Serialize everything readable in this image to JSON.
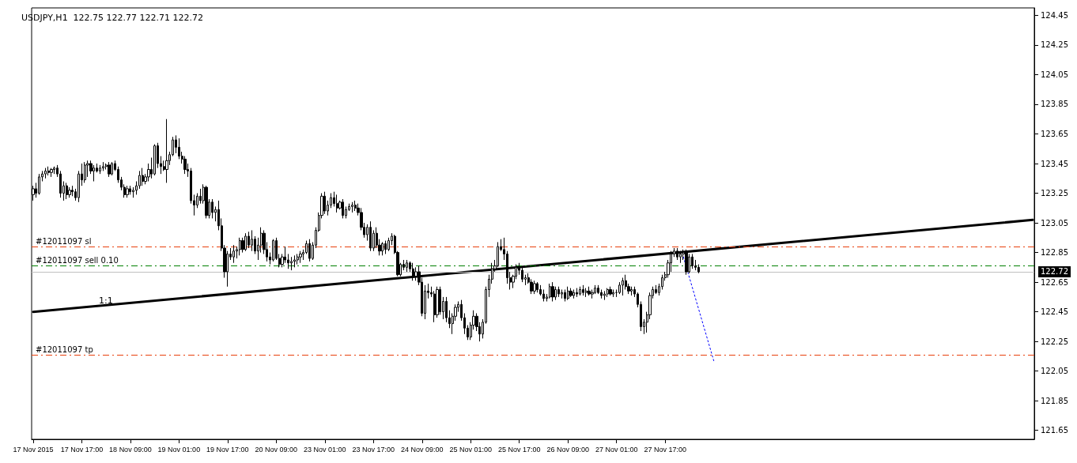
{
  "chart_data": {
    "type": "candlestick",
    "title": "USDJPY,H1  122.75 122.77 122.71 122.72",
    "categories": [
      "17 Nov 2015",
      null,
      null,
      null,
      null,
      null,
      null,
      null,
      null,
      null,
      null,
      null,
      null,
      null,
      null,
      null,
      "17 Nov 17:00",
      null,
      null,
      null,
      null,
      null,
      null,
      null,
      null,
      null,
      null,
      null,
      null,
      null,
      null,
      null,
      "18 Nov 09:00",
      null,
      null,
      null,
      null,
      null,
      null,
      null,
      null,
      null,
      null,
      null,
      null,
      null,
      null,
      null,
      "19 Nov 01:00",
      null,
      null,
      null,
      null,
      null,
      null,
      null,
      null,
      null,
      null,
      null,
      null,
      null,
      null,
      null,
      "19 Nov 17:00",
      null,
      null,
      null,
      null,
      null,
      null,
      null,
      null,
      null,
      null,
      null,
      null,
      null,
      null,
      null,
      "20 Nov 09:00",
      null,
      null,
      null,
      null,
      null,
      null,
      null,
      null,
      null,
      null,
      null,
      null,
      null,
      null,
      null,
      "23 Nov 01:00",
      null,
      null,
      null,
      null,
      null,
      null,
      null,
      null,
      null,
      null,
      null,
      null,
      null,
      null,
      null,
      "23 Nov 17:00",
      null,
      null,
      null,
      null,
      null,
      null,
      null,
      null,
      null,
      null,
      null,
      null,
      null,
      null,
      null,
      "24 Nov 09:00",
      null,
      null,
      null,
      null,
      null,
      null,
      null,
      null,
      null,
      null,
      null,
      null,
      null,
      null,
      null,
      "25 Nov 01:00",
      null,
      null,
      null,
      null,
      null,
      null,
      null,
      null,
      null,
      null,
      null,
      null,
      null,
      null,
      null,
      "25 Nov 17:00",
      null,
      null,
      null,
      null,
      null,
      null,
      null,
      null,
      null,
      null,
      null,
      null,
      null,
      null,
      null,
      "26 Nov 09:00",
      null,
      null,
      null,
      null,
      null,
      null,
      null,
      null,
      null,
      null,
      null,
      null,
      null,
      null,
      null,
      "27 Nov 01:00",
      null,
      null,
      null,
      null,
      null,
      null,
      null,
      null,
      null,
      null,
      null,
      null,
      null,
      null,
      null,
      "27 Nov 17:00",
      null,
      null,
      null,
      null,
      null,
      null,
      null,
      null,
      null,
      null,
      null,
      null,
      null,
      null,
      null,
      null,
      null,
      null,
      null,
      null,
      null,
      null,
      null,
      null,
      null,
      null,
      null,
      null,
      null,
      null,
      null,
      null,
      null,
      null,
      null,
      null,
      null,
      null,
      null,
      null,
      null,
      null,
      null,
      null,
      null,
      null,
      null,
      null,
      null,
      null,
      null,
      null,
      null,
      null,
      null,
      null,
      null,
      null,
      null,
      null,
      null,
      null,
      null,
      null,
      null,
      null,
      null,
      null,
      null,
      null,
      null,
      null,
      null,
      null,
      null,
      null,
      null,
      null,
      null,
      null,
      null,
      null,
      null,
      null,
      null,
      null,
      null,
      null,
      null,
      null,
      null,
      null,
      null,
      null,
      null,
      null,
      null,
      null,
      null,
      null,
      null,
      null,
      null,
      null,
      null,
      null,
      null,
      null,
      null,
      null,
      null,
      null,
      null,
      null,
      null,
      null,
      null,
      null,
      null,
      null,
      null
    ],
    "ohlc": [
      [
        123.24,
        123.3,
        123.2,
        123.28
      ],
      [
        123.28,
        123.32,
        123.22,
        123.25
      ],
      [
        123.25,
        123.38,
        123.24,
        123.36
      ],
      [
        123.36,
        123.4,
        123.33,
        123.38
      ],
      [
        123.38,
        123.42,
        123.35,
        123.4
      ],
      [
        123.4,
        123.43,
        123.37,
        123.39
      ],
      [
        123.39,
        123.42,
        123.36,
        123.41
      ],
      [
        123.41,
        123.43,
        123.38,
        123.42
      ],
      [
        123.42,
        123.44,
        123.36,
        123.38
      ],
      [
        123.38,
        123.4,
        123.22,
        123.25
      ],
      [
        123.25,
        123.33,
        123.2,
        123.3
      ],
      [
        123.3,
        123.32,
        123.21,
        123.24
      ],
      [
        123.24,
        123.29,
        123.22,
        123.27
      ],
      [
        123.27,
        123.3,
        123.23,
        123.26
      ],
      [
        123.26,
        123.28,
        123.2,
        123.22
      ],
      [
        123.22,
        123.4,
        123.19,
        123.38
      ],
      [
        123.38,
        123.45,
        123.3,
        123.34
      ],
      [
        123.34,
        123.46,
        123.32,
        123.44
      ],
      [
        123.44,
        123.47,
        123.36,
        123.45
      ],
      [
        123.45,
        123.47,
        123.38,
        123.4
      ],
      [
        123.4,
        123.44,
        123.33,
        123.42
      ],
      [
        123.42,
        123.45,
        123.39,
        123.4
      ],
      [
        123.4,
        123.44,
        123.38,
        123.42
      ],
      [
        123.42,
        123.46,
        123.4,
        123.43
      ],
      [
        123.43,
        123.45,
        123.41,
        123.44
      ],
      [
        123.44,
        123.46,
        123.36,
        123.38
      ],
      [
        123.38,
        123.46,
        123.37,
        123.45
      ],
      [
        123.45,
        123.47,
        123.4,
        123.41
      ],
      [
        123.41,
        123.43,
        123.32,
        123.34
      ],
      [
        123.34,
        123.36,
        123.27,
        123.29
      ],
      [
        123.29,
        123.31,
        123.22,
        123.24
      ],
      [
        123.24,
        123.3,
        123.22,
        123.28
      ],
      [
        123.28,
        123.3,
        123.24,
        123.26
      ],
      [
        123.26,
        123.29,
        123.22,
        123.27
      ],
      [
        123.27,
        123.33,
        123.24,
        123.3
      ],
      [
        123.3,
        123.4,
        123.28,
        123.37
      ],
      [
        123.37,
        123.42,
        123.3,
        123.33
      ],
      [
        123.33,
        123.38,
        123.31,
        123.36
      ],
      [
        123.36,
        123.45,
        123.33,
        123.41
      ],
      [
        123.41,
        123.49,
        123.35,
        123.38
      ],
      [
        123.38,
        123.58,
        123.37,
        123.57
      ],
      [
        123.57,
        123.59,
        123.42,
        123.45
      ],
      [
        123.45,
        123.5,
        123.38,
        123.43
      ],
      [
        123.43,
        123.47,
        123.4,
        123.41
      ],
      [
        123.41,
        123.75,
        123.32,
        123.47
      ],
      [
        123.47,
        123.53,
        123.44,
        123.51
      ],
      [
        123.51,
        123.63,
        123.5,
        123.61
      ],
      [
        123.61,
        123.64,
        123.52,
        123.56
      ],
      [
        123.56,
        123.62,
        123.48,
        123.5
      ],
      [
        123.5,
        123.53,
        123.45,
        123.48
      ],
      [
        123.48,
        123.5,
        123.38,
        123.41
      ],
      [
        123.41,
        123.45,
        123.36,
        123.4
      ],
      [
        123.4,
        123.42,
        123.18,
        123.2
      ],
      [
        123.2,
        123.24,
        123.1,
        123.17
      ],
      [
        123.17,
        123.25,
        123.15,
        123.23
      ],
      [
        123.23,
        123.28,
        123.18,
        123.2
      ],
      [
        123.2,
        123.31,
        123.18,
        123.29
      ],
      [
        123.29,
        123.3,
        123.08,
        123.1
      ],
      [
        123.1,
        123.21,
        123.08,
        123.19
      ],
      [
        123.19,
        123.21,
        123.08,
        123.12
      ],
      [
        123.12,
        123.16,
        123.06,
        123.14
      ],
      [
        123.14,
        123.2,
        123.0,
        123.03
      ],
      [
        123.03,
        123.08,
        122.86,
        122.88
      ],
      [
        122.88,
        122.9,
        122.68,
        122.72
      ],
      [
        122.72,
        122.86,
        122.62,
        122.84
      ],
      [
        122.84,
        122.88,
        122.8,
        122.82
      ],
      [
        122.82,
        122.9,
        122.78,
        122.86
      ],
      [
        122.86,
        122.89,
        122.81,
        122.87
      ],
      [
        122.87,
        122.95,
        122.83,
        122.93
      ],
      [
        122.93,
        122.95,
        122.85,
        122.87
      ],
      [
        122.87,
        122.98,
        122.86,
        122.96
      ],
      [
        122.96,
        122.99,
        122.88,
        122.9
      ],
      [
        122.9,
        123.0,
        122.86,
        122.94
      ],
      [
        122.94,
        122.96,
        122.84,
        122.86
      ],
      [
        122.86,
        122.95,
        122.8,
        122.9
      ],
      [
        122.9,
        123.02,
        122.85,
        122.98
      ],
      [
        122.98,
        123.0,
        122.84,
        122.87
      ],
      [
        122.87,
        122.92,
        122.79,
        122.82
      ],
      [
        122.82,
        122.85,
        122.77,
        122.8
      ],
      [
        122.8,
        122.94,
        122.79,
        122.93
      ],
      [
        122.93,
        122.95,
        122.8,
        122.81
      ],
      [
        122.81,
        122.84,
        122.75,
        122.77
      ],
      [
        122.77,
        122.84,
        122.75,
        122.82
      ],
      [
        122.82,
        122.89,
        122.78,
        122.8
      ],
      [
        122.8,
        122.84,
        122.74,
        122.78
      ],
      [
        122.78,
        122.82,
        122.73,
        122.79
      ],
      [
        122.79,
        122.83,
        122.75,
        122.8
      ],
      [
        122.8,
        122.84,
        122.77,
        122.82
      ],
      [
        122.82,
        122.86,
        122.78,
        122.84
      ],
      [
        122.84,
        122.87,
        122.8,
        122.85
      ],
      [
        122.85,
        122.93,
        122.84,
        122.91
      ],
      [
        122.91,
        122.94,
        122.79,
        122.81
      ],
      [
        122.81,
        122.92,
        122.8,
        122.9
      ],
      [
        122.9,
        123.02,
        122.88,
        123.0
      ],
      [
        123.0,
        123.12,
        122.99,
        123.1
      ],
      [
        123.1,
        123.25,
        123.08,
        123.23
      ],
      [
        123.23,
        123.26,
        123.11,
        123.13
      ],
      [
        123.13,
        123.2,
        123.1,
        123.17
      ],
      [
        123.17,
        123.25,
        123.15,
        123.22
      ],
      [
        123.22,
        123.26,
        123.16,
        123.18
      ],
      [
        123.18,
        123.24,
        123.12,
        123.15
      ],
      [
        123.15,
        123.2,
        123.14,
        123.19
      ],
      [
        123.19,
        123.21,
        123.08,
        123.1
      ],
      [
        123.1,
        123.16,
        123.08,
        123.14
      ],
      [
        123.14,
        123.18,
        123.13,
        123.16
      ],
      [
        123.16,
        123.19,
        123.12,
        123.17
      ],
      [
        123.17,
        123.2,
        123.13,
        123.15
      ],
      [
        123.15,
        123.18,
        123.1,
        123.12
      ],
      [
        123.12,
        123.15,
        123.0,
        123.02
      ],
      [
        123.02,
        123.05,
        122.95,
        122.97
      ],
      [
        122.97,
        123.04,
        122.93,
        123.02
      ],
      [
        123.02,
        123.06,
        122.86,
        122.88
      ],
      [
        122.88,
        123.0,
        122.86,
        122.98
      ],
      [
        122.98,
        123.02,
        122.88,
        122.9
      ],
      [
        122.9,
        122.94,
        122.83,
        122.86
      ],
      [
        122.86,
        122.92,
        122.83,
        122.91
      ],
      [
        122.91,
        122.93,
        122.84,
        122.87
      ],
      [
        122.87,
        122.95,
        122.86,
        122.93
      ],
      [
        122.93,
        122.98,
        122.9,
        122.96
      ],
      [
        122.96,
        122.97,
        122.84,
        122.85
      ],
      [
        122.85,
        122.86,
        122.69,
        122.7
      ],
      [
        122.7,
        122.78,
        122.69,
        122.77
      ],
      [
        122.77,
        122.8,
        122.73,
        122.75
      ],
      [
        122.75,
        122.8,
        122.72,
        122.78
      ],
      [
        122.78,
        122.79,
        122.72,
        122.74
      ],
      [
        122.74,
        122.78,
        122.66,
        122.69
      ],
      [
        122.69,
        122.75,
        122.66,
        122.72
      ],
      [
        122.72,
        122.76,
        122.63,
        122.65
      ],
      [
        122.65,
        122.68,
        122.42,
        122.44
      ],
      [
        122.44,
        122.63,
        122.4,
        122.59
      ],
      [
        122.59,
        122.64,
        122.54,
        122.58
      ],
      [
        122.58,
        122.62,
        122.55,
        122.57
      ],
      [
        122.57,
        122.59,
        122.38,
        122.43
      ],
      [
        122.43,
        122.62,
        122.41,
        122.6
      ],
      [
        122.6,
        122.62,
        122.43,
        122.45
      ],
      [
        122.45,
        122.55,
        122.4,
        122.52
      ],
      [
        122.52,
        122.55,
        122.38,
        122.41
      ],
      [
        122.41,
        122.46,
        122.34,
        122.37
      ],
      [
        122.37,
        122.44,
        122.3,
        122.42
      ],
      [
        122.42,
        122.5,
        122.39,
        122.48
      ],
      [
        122.48,
        122.52,
        122.45,
        122.5
      ],
      [
        122.5,
        122.53,
        122.39,
        122.41
      ],
      [
        122.41,
        122.44,
        122.3,
        122.34
      ],
      [
        122.34,
        122.36,
        122.26,
        122.28
      ],
      [
        122.28,
        122.38,
        122.26,
        122.36
      ],
      [
        122.36,
        122.46,
        122.33,
        122.42
      ],
      [
        122.42,
        122.44,
        122.32,
        122.35
      ],
      [
        122.35,
        122.38,
        122.25,
        122.3
      ],
      [
        122.3,
        122.4,
        122.27,
        122.38
      ],
      [
        122.38,
        122.62,
        122.37,
        122.6
      ],
      [
        122.6,
        122.7,
        122.55,
        122.67
      ],
      [
        122.67,
        122.78,
        122.64,
        122.74
      ],
      [
        122.74,
        122.8,
        122.72,
        122.76
      ],
      [
        122.76,
        122.92,
        122.75,
        122.89
      ],
      [
        122.89,
        122.94,
        122.86,
        122.87
      ],
      [
        122.87,
        122.95,
        122.8,
        122.84
      ],
      [
        122.84,
        122.86,
        122.64,
        122.68
      ],
      [
        122.68,
        122.72,
        122.6,
        122.65
      ],
      [
        122.65,
        122.7,
        122.61,
        122.69
      ],
      [
        122.69,
        122.77,
        122.67,
        122.75
      ],
      [
        122.75,
        122.78,
        122.7,
        122.73
      ],
      [
        122.73,
        122.75,
        122.65,
        122.67
      ],
      [
        122.67,
        122.7,
        122.63,
        122.68
      ],
      [
        122.68,
        122.71,
        122.64,
        122.65
      ],
      [
        122.65,
        122.67,
        122.57,
        122.59
      ],
      [
        122.59,
        122.66,
        122.57,
        122.64
      ],
      [
        122.64,
        122.65,
        122.58,
        122.6
      ],
      [
        122.6,
        122.63,
        122.56,
        122.57
      ],
      [
        122.57,
        122.6,
        122.52,
        122.54
      ],
      [
        122.54,
        122.57,
        122.52,
        122.55
      ],
      [
        122.55,
        122.64,
        122.54,
        122.62
      ],
      [
        122.62,
        122.65,
        122.52,
        122.55
      ],
      [
        122.55,
        122.62,
        122.53,
        122.6
      ],
      [
        122.6,
        122.62,
        122.55,
        122.57
      ],
      [
        122.57,
        122.6,
        122.54,
        122.58
      ],
      [
        122.58,
        122.6,
        122.52,
        122.54
      ],
      [
        122.54,
        122.62,
        122.53,
        122.59
      ],
      [
        122.59,
        122.61,
        122.55,
        122.56
      ],
      [
        122.56,
        122.6,
        122.54,
        122.58
      ],
      [
        122.58,
        122.61,
        122.55,
        122.57
      ],
      [
        122.57,
        122.62,
        122.56,
        122.6
      ],
      [
        122.6,
        122.63,
        122.56,
        122.58
      ],
      [
        122.58,
        122.61,
        122.55,
        122.59
      ],
      [
        122.59,
        122.62,
        122.56,
        122.57
      ],
      [
        122.57,
        122.6,
        122.54,
        122.58
      ],
      [
        122.58,
        122.63,
        122.57,
        122.61
      ],
      [
        122.61,
        122.63,
        122.57,
        122.58
      ],
      [
        122.58,
        122.6,
        122.54,
        122.56
      ],
      [
        122.56,
        122.59,
        122.53,
        122.57
      ],
      [
        122.57,
        122.61,
        122.55,
        122.6
      ],
      [
        122.6,
        122.62,
        122.56,
        122.57
      ],
      [
        122.57,
        122.6,
        122.55,
        122.58
      ],
      [
        122.58,
        122.6,
        122.55,
        122.58
      ],
      [
        122.58,
        122.65,
        122.57,
        122.63
      ],
      [
        122.63,
        122.68,
        122.56,
        122.66
      ],
      [
        122.66,
        122.7,
        122.6,
        122.62
      ],
      [
        122.62,
        122.64,
        122.57,
        122.59
      ],
      [
        122.59,
        122.62,
        122.56,
        122.6
      ],
      [
        122.6,
        122.62,
        122.55,
        122.57
      ],
      [
        122.57,
        122.58,
        122.48,
        122.5
      ],
      [
        122.5,
        122.52,
        122.32,
        122.35
      ],
      [
        122.35,
        122.4,
        122.3,
        122.38
      ],
      [
        122.38,
        122.45,
        122.31,
        122.43
      ],
      [
        122.43,
        122.58,
        122.4,
        122.56
      ],
      [
        122.56,
        122.62,
        122.54,
        122.6
      ],
      [
        122.6,
        122.63,
        122.57,
        122.58
      ],
      [
        122.58,
        122.64,
        122.56,
        122.62
      ],
      [
        122.62,
        122.7,
        122.6,
        122.68
      ],
      [
        122.68,
        122.72,
        122.66,
        122.7
      ],
      [
        122.7,
        122.8,
        122.68,
        122.78
      ],
      [
        122.78,
        122.86,
        122.72,
        122.84
      ],
      [
        122.84,
        122.88,
        122.82,
        122.86
      ],
      [
        122.86,
        122.88,
        122.8,
        122.82
      ],
      [
        122.82,
        122.86,
        122.78,
        122.84
      ],
      [
        122.84,
        122.87,
        122.8,
        122.85
      ],
      [
        122.85,
        122.87,
        122.7,
        122.72
      ],
      [
        122.72,
        122.84,
        122.71,
        122.82
      ],
      [
        122.82,
        122.84,
        122.74,
        122.76
      ],
      [
        122.76,
        122.8,
        122.73,
        122.75
      ],
      [
        122.75,
        122.77,
        122.71,
        122.72
      ],
      null,
      null,
      null,
      null,
      null,
      null,
      null,
      null,
      null,
      null,
      null,
      null,
      null,
      null,
      null,
      null,
      null,
      null,
      null,
      null,
      null,
      null,
      null,
      null,
      null,
      null,
      null,
      null,
      null,
      null,
      null,
      null,
      null,
      null,
      null,
      null,
      null,
      null,
      null,
      null,
      null,
      null,
      null,
      null,
      null,
      null,
      null,
      null,
      null,
      null,
      null,
      null,
      null,
      null,
      null,
      null,
      null,
      null,
      null,
      null,
      null,
      null,
      null,
      null,
      null,
      null,
      null,
      null,
      null,
      null,
      null,
      null,
      null,
      null,
      null,
      null,
      null,
      null,
      null,
      null,
      null,
      null,
      null,
      null,
      null,
      null,
      null,
      null,
      null,
      null,
      null,
      null,
      null,
      null,
      null,
      null,
      null,
      null,
      null,
      null,
      null,
      null,
      null,
      null,
      null,
      null,
      null,
      null,
      null,
      null
    ],
    "series": [
      {
        "type": "line",
        "color": "#000000",
        "line_style": "solid",
        "values": [
          122.45,
          null,
          null,
          null,
          null,
          null,
          null,
          null,
          null,
          null,
          null,
          null,
          null,
          null,
          null,
          null,
          null,
          null,
          null,
          null,
          null,
          null,
          null,
          null,
          null,
          null,
          null,
          null,
          null,
          null,
          null,
          null,
          null,
          null,
          null,
          null,
          null,
          null,
          null,
          null,
          null,
          null,
          null,
          null,
          null,
          null,
          null,
          null,
          null,
          null,
          null,
          null,
          null,
          null,
          null,
          null,
          null,
          null,
          null,
          null,
          null,
          null,
          null,
          null,
          null,
          null,
          null,
          null,
          null,
          null,
          null,
          null,
          null,
          null,
          null,
          null,
          null,
          null,
          null,
          null,
          null,
          null,
          null,
          null,
          null,
          null,
          null,
          null,
          null,
          null,
          null,
          null,
          null,
          null,
          null,
          null,
          null,
          null,
          null,
          null,
          null,
          null,
          null,
          null,
          null,
          null,
          null,
          null,
          null,
          null,
          null,
          null,
          null,
          null,
          null,
          null,
          null,
          null,
          null,
          null,
          null,
          null,
          null,
          null,
          null,
          null,
          null,
          null,
          null,
          null,
          null,
          null,
          null,
          null,
          null,
          null,
          null,
          null,
          null,
          null,
          null,
          null,
          null,
          null,
          null,
          null,
          null,
          null,
          null,
          null,
          null,
          null,
          null,
          null,
          null,
          null,
          null,
          null,
          null,
          null,
          null,
          null,
          null,
          null,
          null,
          null,
          null,
          null,
          null,
          null,
          null,
          null,
          null,
          null,
          null,
          null,
          null,
          null,
          null,
          null,
          null,
          null,
          null,
          null,
          null,
          null,
          null,
          null,
          null,
          null,
          null,
          null,
          null,
          null,
          null,
          null,
          null,
          null,
          null,
          null,
          null,
          null,
          null,
          null,
          null,
          null,
          null,
          null,
          null,
          null,
          null,
          null,
          null,
          null,
          null,
          null,
          null,
          null,
          null,
          null,
          null,
          null,
          null,
          null,
          null,
          null,
          null,
          null,
          null,
          null,
          null,
          null,
          null,
          null,
          null,
          null,
          null,
          null,
          null,
          null,
          null,
          null,
          null,
          null,
          null,
          null,
          null,
          null,
          null,
          null,
          null,
          null,
          null,
          null,
          null,
          null,
          null,
          null,
          null,
          null,
          null,
          null,
          null,
          null,
          null,
          null,
          null,
          null,
          null,
          null,
          null,
          null,
          null,
          null,
          null,
          null,
          null,
          null,
          null,
          null,
          null,
          null,
          null,
          null,
          null,
          null,
          null,
          null,
          null,
          null,
          null,
          null,
          null,
          null,
          null,
          null,
          null,
          null,
          null,
          null,
          null,
          null,
          null,
          null,
          null,
          null,
          null,
          null,
          null,
          null,
          null,
          null,
          null,
          null,
          null,
          null,
          null,
          null,
          null,
          null,
          null,
          null,
          null,
          null,
          null,
          null,
          null,
          null,
          null,
          123.07
        ]
      },
      {
        "type": "line",
        "color": "#0000ff",
        "line_style": "dotted",
        "values": [
          null,
          null,
          null,
          null,
          null,
          null,
          null,
          null,
          null,
          null,
          null,
          null,
          null,
          null,
          null,
          null,
          null,
          null,
          null,
          null,
          null,
          null,
          null,
          null,
          null,
          null,
          null,
          null,
          null,
          null,
          null,
          null,
          null,
          null,
          null,
          null,
          null,
          null,
          null,
          null,
          null,
          null,
          null,
          null,
          null,
          null,
          null,
          null,
          null,
          null,
          null,
          null,
          null,
          null,
          null,
          null,
          null,
          null,
          null,
          null,
          null,
          null,
          null,
          null,
          null,
          null,
          null,
          null,
          null,
          null,
          null,
          null,
          null,
          null,
          null,
          null,
          null,
          null,
          null,
          null,
          null,
          null,
          null,
          null,
          null,
          null,
          null,
          null,
          null,
          null,
          null,
          null,
          null,
          null,
          null,
          null,
          null,
          null,
          null,
          null,
          null,
          null,
          null,
          null,
          null,
          null,
          null,
          null,
          null,
          null,
          null,
          null,
          null,
          null,
          null,
          null,
          null,
          null,
          null,
          null,
          null,
          null,
          null,
          null,
          null,
          null,
          null,
          null,
          null,
          null,
          null,
          null,
          null,
          null,
          null,
          null,
          null,
          null,
          null,
          null,
          null,
          null,
          null,
          null,
          null,
          null,
          null,
          null,
          null,
          null,
          null,
          null,
          null,
          null,
          null,
          null,
          null,
          null,
          null,
          null,
          null,
          null,
          null,
          null,
          null,
          null,
          null,
          null,
          null,
          null,
          null,
          null,
          null,
          null,
          null,
          null,
          null,
          null,
          null,
          null,
          null,
          null,
          null,
          null,
          null,
          null,
          null,
          null,
          null,
          null,
          null,
          null,
          null,
          null,
          null,
          null,
          null,
          null,
          null,
          null,
          null,
          null,
          null,
          null,
          null,
          null,
          null,
          null,
          null,
          null,
          null,
          null,
          null,
          null,
          122.82,
          null,
          null,
          null,
          null,
          null,
          null,
          null,
          null,
          null,
          122.12,
          null,
          null,
          null,
          null,
          null,
          null,
          null,
          null,
          null,
          null,
          null,
          null,
          null,
          null,
          null,
          null,
          null,
          null,
          null,
          null,
          null,
          null,
          null,
          null,
          null,
          null,
          null,
          null,
          null,
          null,
          null,
          null,
          null,
          null,
          null,
          null,
          null,
          null,
          null,
          null,
          null,
          null,
          null,
          null,
          null,
          null,
          null,
          null,
          null,
          null,
          null,
          null,
          null,
          null,
          null,
          null,
          null,
          null,
          null,
          null,
          null,
          null,
          null,
          null,
          null,
          null,
          null,
          null,
          null,
          null,
          null,
          null,
          null,
          null,
          null,
          null,
          null,
          null,
          null,
          null,
          null,
          null,
          null,
          null,
          null,
          null,
          null,
          null,
          null,
          null,
          null,
          null,
          null,
          null,
          null,
          null,
          null,
          null,
          null,
          null,
          null,
          null,
          null,
          null,
          null
        ]
      }
    ],
    "ylim": [
      121.59,
      124.5
    ],
    "yticks": [
      121.65,
      121.85,
      122.05,
      122.25,
      122.45,
      122.65,
      122.85,
      123.05,
      123.25,
      123.45,
      123.65,
      123.85,
      124.05,
      124.25,
      124.45
    ],
    "ref_lines": [
      {
        "axis": "y",
        "value": 122.89,
        "label": "#12011097 sl",
        "color": "#e8400c",
        "line_style": "dashed"
      },
      {
        "axis": "y",
        "value": 122.76,
        "label": "#12011097 sell 0.10",
        "color": "#008000",
        "line_style": "dashed"
      },
      {
        "axis": "y",
        "value": 122.16,
        "label": "#12011097 tp",
        "color": "#e8400c",
        "line_style": "dashed"
      },
      {
        "axis": "y",
        "value": 122.72,
        "label": "122.72",
        "color": "#c0c0c0",
        "line_style": "solid"
      }
    ],
    "annotations": [
      "1:1"
    ],
    "grid": false
  }
}
